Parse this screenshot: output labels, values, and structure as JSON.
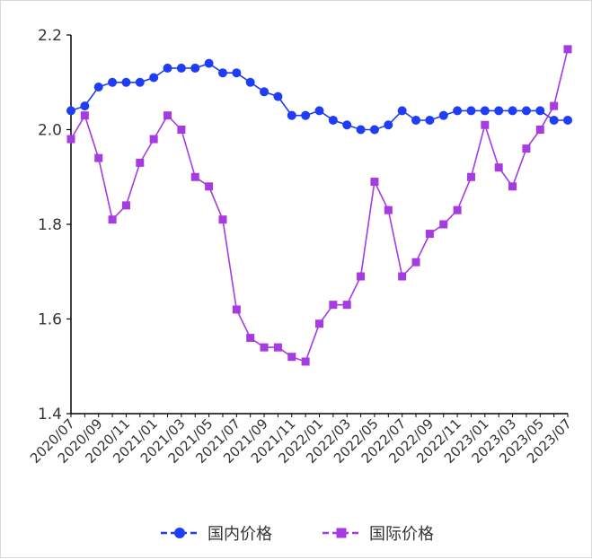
{
  "chart_data": {
    "type": "line",
    "x": [
      "2020/07",
      "2020/08",
      "2020/09",
      "2020/10",
      "2020/11",
      "2020/12",
      "2021/01",
      "2021/02",
      "2021/03",
      "2021/04",
      "2021/05",
      "2021/06",
      "2021/07",
      "2021/08",
      "2021/09",
      "2021/10",
      "2021/11",
      "2021/12",
      "2022/01",
      "2022/02",
      "2022/03",
      "2022/04",
      "2022/05",
      "2022/06",
      "2022/07",
      "2022/08",
      "2022/09",
      "2022/10",
      "2022/11",
      "2022/12",
      "2023/01",
      "2023/02",
      "2023/03",
      "2023/04",
      "2023/05",
      "2023/06",
      "2023/07"
    ],
    "xtick_labels": [
      "2020/07",
      "2020/09",
      "2020/11",
      "2021/01",
      "2021/03",
      "2021/05",
      "2021/07",
      "2021/09",
      "2021/11",
      "2022/01",
      "2022/03",
      "2022/05",
      "2022/07",
      "2022/09",
      "2022/11",
      "2023/01",
      "2023/03",
      "2023/05",
      "2023/07"
    ],
    "series": [
      {
        "name": "国内价格",
        "color": "#1f3df5",
        "marker": "circle",
        "values": [
          2.04,
          2.05,
          2.09,
          2.1,
          2.1,
          2.1,
          2.11,
          2.13,
          2.13,
          2.13,
          2.14,
          2.12,
          2.12,
          2.1,
          2.08,
          2.07,
          2.03,
          2.03,
          2.04,
          2.02,
          2.01,
          2.0,
          2.0,
          2.01,
          2.04,
          2.02,
          2.02,
          2.03,
          2.04,
          2.04,
          2.04,
          2.04,
          2.04,
          2.04,
          2.04,
          2.02,
          2.02
        ]
      },
      {
        "name": "国际价格",
        "color": "#a63be0",
        "marker": "square",
        "values": [
          1.98,
          2.03,
          1.94,
          1.81,
          1.84,
          1.93,
          1.98,
          2.03,
          2.0,
          1.9,
          1.88,
          1.81,
          1.62,
          1.56,
          1.54,
          1.54,
          1.52,
          1.51,
          1.59,
          1.63,
          1.63,
          1.69,
          1.89,
          1.83,
          1.69,
          1.72,
          1.78,
          1.8,
          1.83,
          1.9,
          2.01,
          1.92,
          1.88,
          1.96,
          2.0,
          2.05,
          2.17
        ]
      }
    ],
    "ylim": [
      1.4,
      2.2
    ],
    "yticks": [
      "1.4",
      "1.6",
      "1.8",
      "2.0",
      "2.2"
    ],
    "grid": false,
    "legend": "bottom"
  }
}
